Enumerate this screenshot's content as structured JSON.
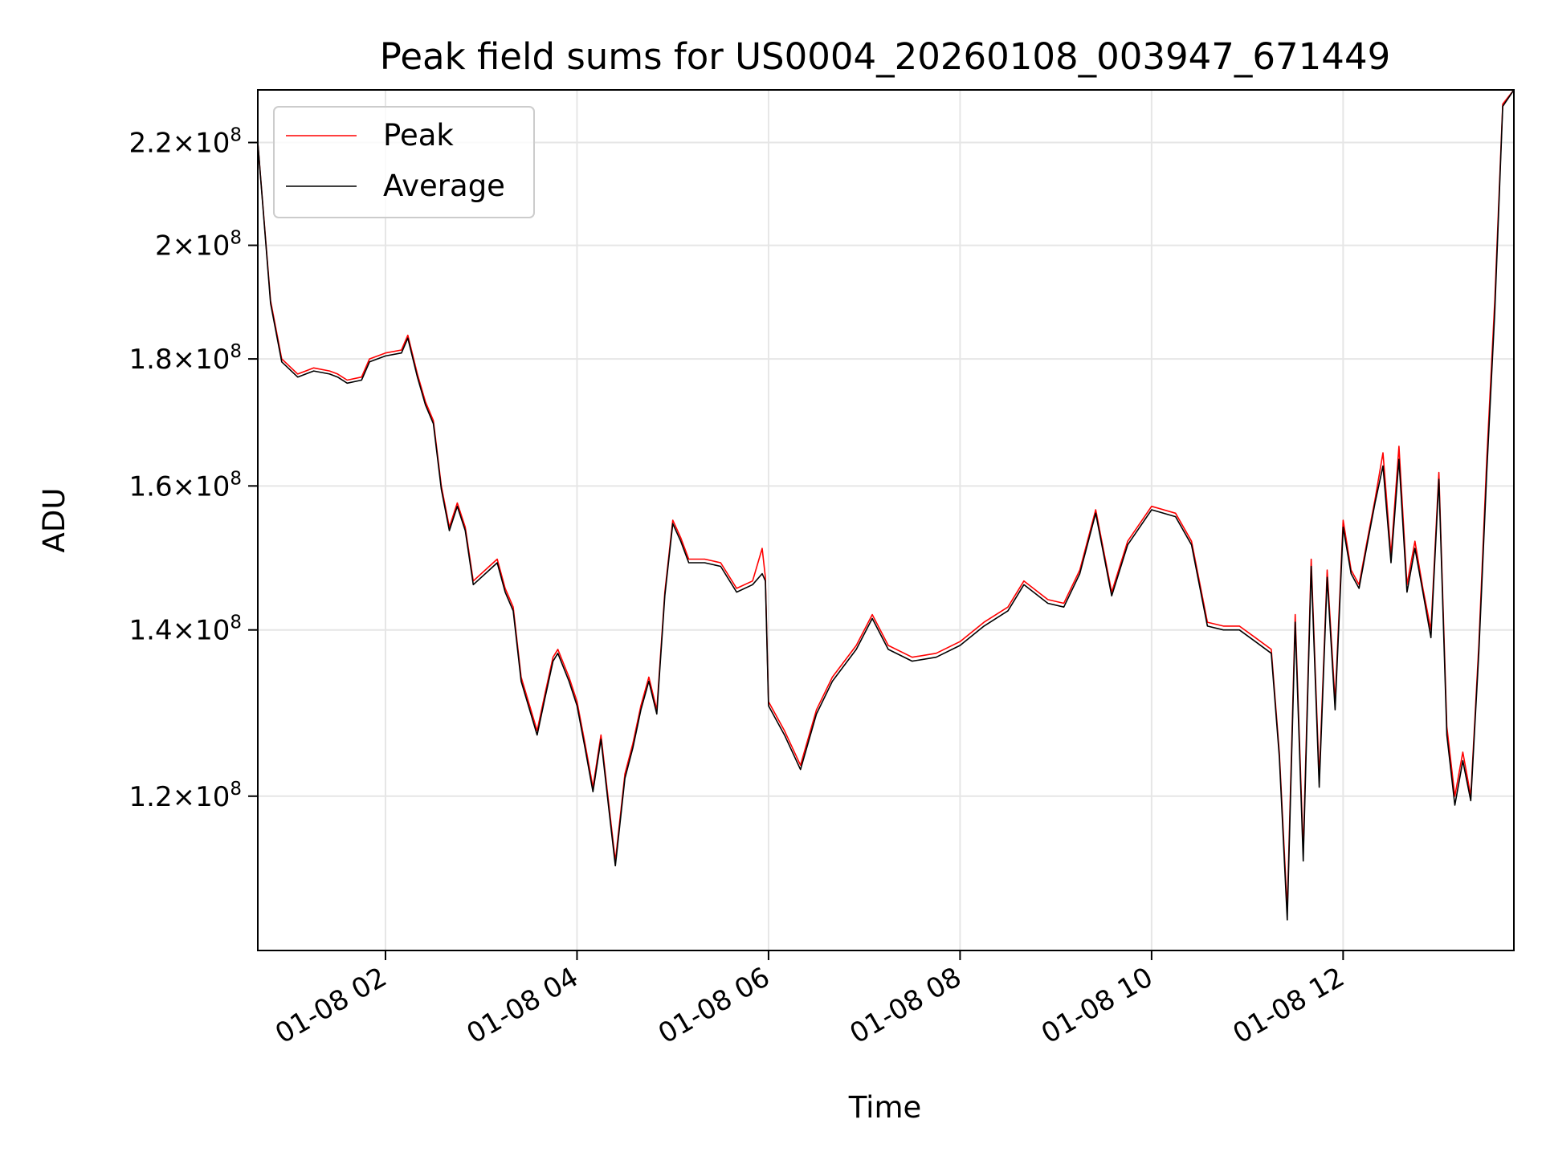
{
  "chart_data": {
    "type": "line",
    "title": "Peak field sums for US0004_20260108_003947_671449",
    "xlabel": "Time",
    "ylabel": "ADU",
    "yscale": "log",
    "grid": true,
    "legend_position": "top-left",
    "x_range": [
      "2026-01-08T00:40",
      "2026-01-08T13:47"
    ],
    "ylim": [
      104000000,
      231000000
    ],
    "xticks": [
      {
        "value": "2026-01-08T02:00",
        "label": "01-08 02"
      },
      {
        "value": "2026-01-08T04:00",
        "label": "01-08 04"
      },
      {
        "value": "2026-01-08T06:00",
        "label": "01-08 06"
      },
      {
        "value": "2026-01-08T08:00",
        "label": "01-08 08"
      },
      {
        "value": "2026-01-08T10:00",
        "label": "01-08 10"
      },
      {
        "value": "2026-01-08T12:00",
        "label": "01-08 12"
      }
    ],
    "yticks": [
      {
        "value": 120000000,
        "mantissa": "1.2",
        "base": "10",
        "exp": "8"
      },
      {
        "value": 140000000,
        "mantissa": "1.4",
        "base": "10",
        "exp": "8"
      },
      {
        "value": 160000000,
        "mantissa": "1.6",
        "base": "10",
        "exp": "8"
      },
      {
        "value": 180000000,
        "mantissa": "1.8",
        "base": "10",
        "exp": "8"
      },
      {
        "value": 200000000,
        "mantissa": "2",
        "base": "10",
        "exp": "8"
      },
      {
        "value": 220000000,
        "mantissa": "2.2",
        "base": "10",
        "exp": "8"
      }
    ],
    "series": [
      {
        "name": "Peak",
        "color": "#ff0000",
        "points": [
          [
            "2026-01-08T00:40",
            220000000
          ],
          [
            "2026-01-08T00:48",
            190000000
          ],
          [
            "2026-01-08T00:55",
            180000000
          ],
          [
            "2026-01-08T01:05",
            177500000
          ],
          [
            "2026-01-08T01:15",
            178500000
          ],
          [
            "2026-01-08T01:25",
            178000000
          ],
          [
            "2026-01-08T01:30",
            177500000
          ],
          [
            "2026-01-08T01:36",
            176500000
          ],
          [
            "2026-01-08T01:45",
            177000000
          ],
          [
            "2026-01-08T01:50",
            180000000
          ],
          [
            "2026-01-08T02:00",
            181000000
          ],
          [
            "2026-01-08T02:10",
            181500000
          ],
          [
            "2026-01-08T02:14",
            184000000
          ],
          [
            "2026-01-08T02:20",
            177500000
          ],
          [
            "2026-01-08T02:25",
            173000000
          ],
          [
            "2026-01-08T02:30",
            170000000
          ],
          [
            "2026-01-08T02:35",
            160000000
          ],
          [
            "2026-01-08T02:40",
            154000000
          ],
          [
            "2026-01-08T02:45",
            157500000
          ],
          [
            "2026-01-08T02:50",
            154000000
          ],
          [
            "2026-01-08T02:55",
            146500000
          ],
          [
            "2026-01-08T03:05",
            148500000
          ],
          [
            "2026-01-08T03:10",
            149500000
          ],
          [
            "2026-01-08T03:15",
            145500000
          ],
          [
            "2026-01-08T03:20",
            143000000
          ],
          [
            "2026-01-08T03:25",
            134000000
          ],
          [
            "2026-01-08T03:35",
            127500000
          ],
          [
            "2026-01-08T03:40",
            132000000
          ],
          [
            "2026-01-08T03:45",
            136500000
          ],
          [
            "2026-01-08T03:48",
            137500000
          ],
          [
            "2026-01-08T03:55",
            134000000
          ],
          [
            "2026-01-08T04:00",
            131000000
          ],
          [
            "2026-01-08T04:05",
            126000000
          ],
          [
            "2026-01-08T04:10",
            121000000
          ],
          [
            "2026-01-08T04:15",
            127000000
          ],
          [
            "2026-01-08T04:20",
            119000000
          ],
          [
            "2026-01-08T04:24",
            113000000
          ],
          [
            "2026-01-08T04:30",
            122500000
          ],
          [
            "2026-01-08T04:35",
            126000000
          ],
          [
            "2026-01-08T04:40",
            130500000
          ],
          [
            "2026-01-08T04:45",
            134000000
          ],
          [
            "2026-01-08T04:50",
            130000000
          ],
          [
            "2026-01-08T04:55",
            145000000
          ],
          [
            "2026-01-08T05:00",
            155000000
          ],
          [
            "2026-01-08T05:05",
            152500000
          ],
          [
            "2026-01-08T05:10",
            149500000
          ],
          [
            "2026-01-08T05:20",
            149500000
          ],
          [
            "2026-01-08T05:30",
            149000000
          ],
          [
            "2026-01-08T05:40",
            145500000
          ],
          [
            "2026-01-08T05:50",
            146500000
          ],
          [
            "2026-01-08T05:56",
            151000000
          ],
          [
            "2026-01-08T05:58",
            147000000
          ],
          [
            "2026-01-08T06:00",
            131000000
          ],
          [
            "2026-01-08T06:10",
            127500000
          ],
          [
            "2026-01-08T06:20",
            123500000
          ],
          [
            "2026-01-08T06:30",
            130000000
          ],
          [
            "2026-01-08T06:40",
            134000000
          ],
          [
            "2026-01-08T06:55",
            138000000
          ],
          [
            "2026-01-08T07:05",
            142000000
          ],
          [
            "2026-01-08T07:15",
            138000000
          ],
          [
            "2026-01-08T07:30",
            136500000
          ],
          [
            "2026-01-08T07:45",
            137000000
          ],
          [
            "2026-01-08T08:00",
            138500000
          ],
          [
            "2026-01-08T08:15",
            141000000
          ],
          [
            "2026-01-08T08:30",
            143000000
          ],
          [
            "2026-01-08T08:40",
            146500000
          ],
          [
            "2026-01-08T08:55",
            144000000
          ],
          [
            "2026-01-08T09:05",
            143500000
          ],
          [
            "2026-01-08T09:15",
            148000000
          ],
          [
            "2026-01-08T09:25",
            156500000
          ],
          [
            "2026-01-08T09:35",
            145000000
          ],
          [
            "2026-01-08T09:45",
            152000000
          ],
          [
            "2026-01-08T10:00",
            157000000
          ],
          [
            "2026-01-08T10:15",
            156000000
          ],
          [
            "2026-01-08T10:25",
            152000000
          ],
          [
            "2026-01-08T10:35",
            141000000
          ],
          [
            "2026-01-08T10:45",
            140500000
          ],
          [
            "2026-01-08T10:55",
            140500000
          ],
          [
            "2026-01-08T11:05",
            139000000
          ],
          [
            "2026-01-08T11:15",
            137500000
          ],
          [
            "2026-01-08T11:20",
            125000000
          ],
          [
            "2026-01-08T11:25",
            108000000
          ],
          [
            "2026-01-08T11:30",
            142000000
          ],
          [
            "2026-01-08T11:35",
            114000000
          ],
          [
            "2026-01-08T11:40",
            149500000
          ],
          [
            "2026-01-08T11:45",
            122000000
          ],
          [
            "2026-01-08T11:50",
            148000000
          ],
          [
            "2026-01-08T11:55",
            131000000
          ],
          [
            "2026-01-08T12:00",
            155000000
          ],
          [
            "2026-01-08T12:05",
            148000000
          ],
          [
            "2026-01-08T12:10",
            146000000
          ],
          [
            "2026-01-08T12:15",
            152000000
          ],
          [
            "2026-01-08T12:20",
            158000000
          ],
          [
            "2026-01-08T12:25",
            165000000
          ],
          [
            "2026-01-08T12:30",
            150000000
          ],
          [
            "2026-01-08T12:35",
            166000000
          ],
          [
            "2026-01-08T12:40",
            146000000
          ],
          [
            "2026-01-08T12:45",
            152000000
          ],
          [
            "2026-01-08T12:50",
            145500000
          ],
          [
            "2026-01-08T12:55",
            140000000
          ],
          [
            "2026-01-08T13:00",
            162000000
          ],
          [
            "2026-01-08T13:05",
            128000000
          ],
          [
            "2026-01-08T13:10",
            120000000
          ],
          [
            "2026-01-08T13:15",
            125000000
          ],
          [
            "2026-01-08T13:20",
            120000000
          ],
          [
            "2026-01-08T13:25",
            138000000
          ],
          [
            "2026-01-08T13:30",
            164000000
          ],
          [
            "2026-01-08T13:35",
            190000000
          ],
          [
            "2026-01-08T13:40",
            228000000
          ],
          [
            "2026-01-08T13:47",
            231000000
          ]
        ]
      },
      {
        "name": "Average",
        "color": "#000000",
        "points": [
          [
            "2026-01-08T00:40",
            220000000
          ],
          [
            "2026-01-08T00:48",
            189500000
          ],
          [
            "2026-01-08T00:55",
            179500000
          ],
          [
            "2026-01-08T01:05",
            177000000
          ],
          [
            "2026-01-08T01:15",
            178000000
          ],
          [
            "2026-01-08T01:25",
            177500000
          ],
          [
            "2026-01-08T01:30",
            177000000
          ],
          [
            "2026-01-08T01:36",
            176000000
          ],
          [
            "2026-01-08T01:45",
            176500000
          ],
          [
            "2026-01-08T01:50",
            179500000
          ],
          [
            "2026-01-08T02:00",
            180500000
          ],
          [
            "2026-01-08T02:10",
            181000000
          ],
          [
            "2026-01-08T02:14",
            183500000
          ],
          [
            "2026-01-08T02:20",
            177000000
          ],
          [
            "2026-01-08T02:25",
            172500000
          ],
          [
            "2026-01-08T02:30",
            169500000
          ],
          [
            "2026-01-08T02:35",
            159500000
          ],
          [
            "2026-01-08T02:40",
            153500000
          ],
          [
            "2026-01-08T02:45",
            157000000
          ],
          [
            "2026-01-08T02:50",
            153500000
          ],
          [
            "2026-01-08T02:55",
            146000000
          ],
          [
            "2026-01-08T03:05",
            148000000
          ],
          [
            "2026-01-08T03:10",
            149000000
          ],
          [
            "2026-01-08T03:15",
            145000000
          ],
          [
            "2026-01-08T03:20",
            142500000
          ],
          [
            "2026-01-08T03:25",
            133500000
          ],
          [
            "2026-01-08T03:35",
            127000000
          ],
          [
            "2026-01-08T03:40",
            131500000
          ],
          [
            "2026-01-08T03:45",
            136000000
          ],
          [
            "2026-01-08T03:48",
            137000000
          ],
          [
            "2026-01-08T03:55",
            133500000
          ],
          [
            "2026-01-08T04:00",
            130500000
          ],
          [
            "2026-01-08T04:05",
            125500000
          ],
          [
            "2026-01-08T04:10",
            120500000
          ],
          [
            "2026-01-08T04:15",
            126500000
          ],
          [
            "2026-01-08T04:20",
            118500000
          ],
          [
            "2026-01-08T04:24",
            112500000
          ],
          [
            "2026-01-08T04:30",
            122000000
          ],
          [
            "2026-01-08T04:35",
            125500000
          ],
          [
            "2026-01-08T04:40",
            130000000
          ],
          [
            "2026-01-08T04:45",
            133500000
          ],
          [
            "2026-01-08T04:50",
            129500000
          ],
          [
            "2026-01-08T04:55",
            144500000
          ],
          [
            "2026-01-08T05:00",
            154500000
          ],
          [
            "2026-01-08T05:05",
            152000000
          ],
          [
            "2026-01-08T05:10",
            149000000
          ],
          [
            "2026-01-08T05:20",
            149000000
          ],
          [
            "2026-01-08T05:30",
            148500000
          ],
          [
            "2026-01-08T05:40",
            145000000
          ],
          [
            "2026-01-08T05:50",
            146000000
          ],
          [
            "2026-01-08T05:56",
            147500000
          ],
          [
            "2026-01-08T05:58",
            146500000
          ],
          [
            "2026-01-08T06:00",
            130500000
          ],
          [
            "2026-01-08T06:10",
            127000000
          ],
          [
            "2026-01-08T06:20",
            123000000
          ],
          [
            "2026-01-08T06:30",
            129500000
          ],
          [
            "2026-01-08T06:40",
            133500000
          ],
          [
            "2026-01-08T06:55",
            137500000
          ],
          [
            "2026-01-08T07:05",
            141500000
          ],
          [
            "2026-01-08T07:15",
            137500000
          ],
          [
            "2026-01-08T07:30",
            136000000
          ],
          [
            "2026-01-08T07:45",
            136500000
          ],
          [
            "2026-01-08T08:00",
            138000000
          ],
          [
            "2026-01-08T08:15",
            140500000
          ],
          [
            "2026-01-08T08:30",
            142500000
          ],
          [
            "2026-01-08T08:40",
            146000000
          ],
          [
            "2026-01-08T08:55",
            143500000
          ],
          [
            "2026-01-08T09:05",
            143000000
          ],
          [
            "2026-01-08T09:15",
            147500000
          ],
          [
            "2026-01-08T09:25",
            156000000
          ],
          [
            "2026-01-08T09:35",
            144500000
          ],
          [
            "2026-01-08T09:45",
            151500000
          ],
          [
            "2026-01-08T10:00",
            156500000
          ],
          [
            "2026-01-08T10:15",
            155500000
          ],
          [
            "2026-01-08T10:25",
            151500000
          ],
          [
            "2026-01-08T10:35",
            140500000
          ],
          [
            "2026-01-08T10:45",
            140000000
          ],
          [
            "2026-01-08T10:55",
            140000000
          ],
          [
            "2026-01-08T11:05",
            138500000
          ],
          [
            "2026-01-08T11:15",
            137000000
          ],
          [
            "2026-01-08T11:20",
            124500000
          ],
          [
            "2026-01-08T11:25",
            107000000
          ],
          [
            "2026-01-08T11:30",
            141000000
          ],
          [
            "2026-01-08T11:35",
            113000000
          ],
          [
            "2026-01-08T11:40",
            148500000
          ],
          [
            "2026-01-08T11:45",
            121000000
          ],
          [
            "2026-01-08T11:50",
            147000000
          ],
          [
            "2026-01-08T11:55",
            130000000
          ],
          [
            "2026-01-08T12:00",
            154000000
          ],
          [
            "2026-01-08T12:05",
            147500000
          ],
          [
            "2026-01-08T12:10",
            145500000
          ],
          [
            "2026-01-08T12:15",
            151500000
          ],
          [
            "2026-01-08T12:20",
            157500000
          ],
          [
            "2026-01-08T12:25",
            163000000
          ],
          [
            "2026-01-08T12:30",
            149000000
          ],
          [
            "2026-01-08T12:35",
            164000000
          ],
          [
            "2026-01-08T12:40",
            145000000
          ],
          [
            "2026-01-08T12:45",
            151000000
          ],
          [
            "2026-01-08T12:50",
            145000000
          ],
          [
            "2026-01-08T12:55",
            139000000
          ],
          [
            "2026-01-08T13:00",
            161000000
          ],
          [
            "2026-01-08T13:05",
            127000000
          ],
          [
            "2026-01-08T13:10",
            119000000
          ],
          [
            "2026-01-08T13:15",
            124000000
          ],
          [
            "2026-01-08T13:20",
            119500000
          ],
          [
            "2026-01-08T13:25",
            137000000
          ],
          [
            "2026-01-08T13:30",
            162000000
          ],
          [
            "2026-01-08T13:35",
            188000000
          ],
          [
            "2026-01-08T13:40",
            227500000
          ],
          [
            "2026-01-08T13:47",
            231000000
          ]
        ]
      }
    ]
  }
}
